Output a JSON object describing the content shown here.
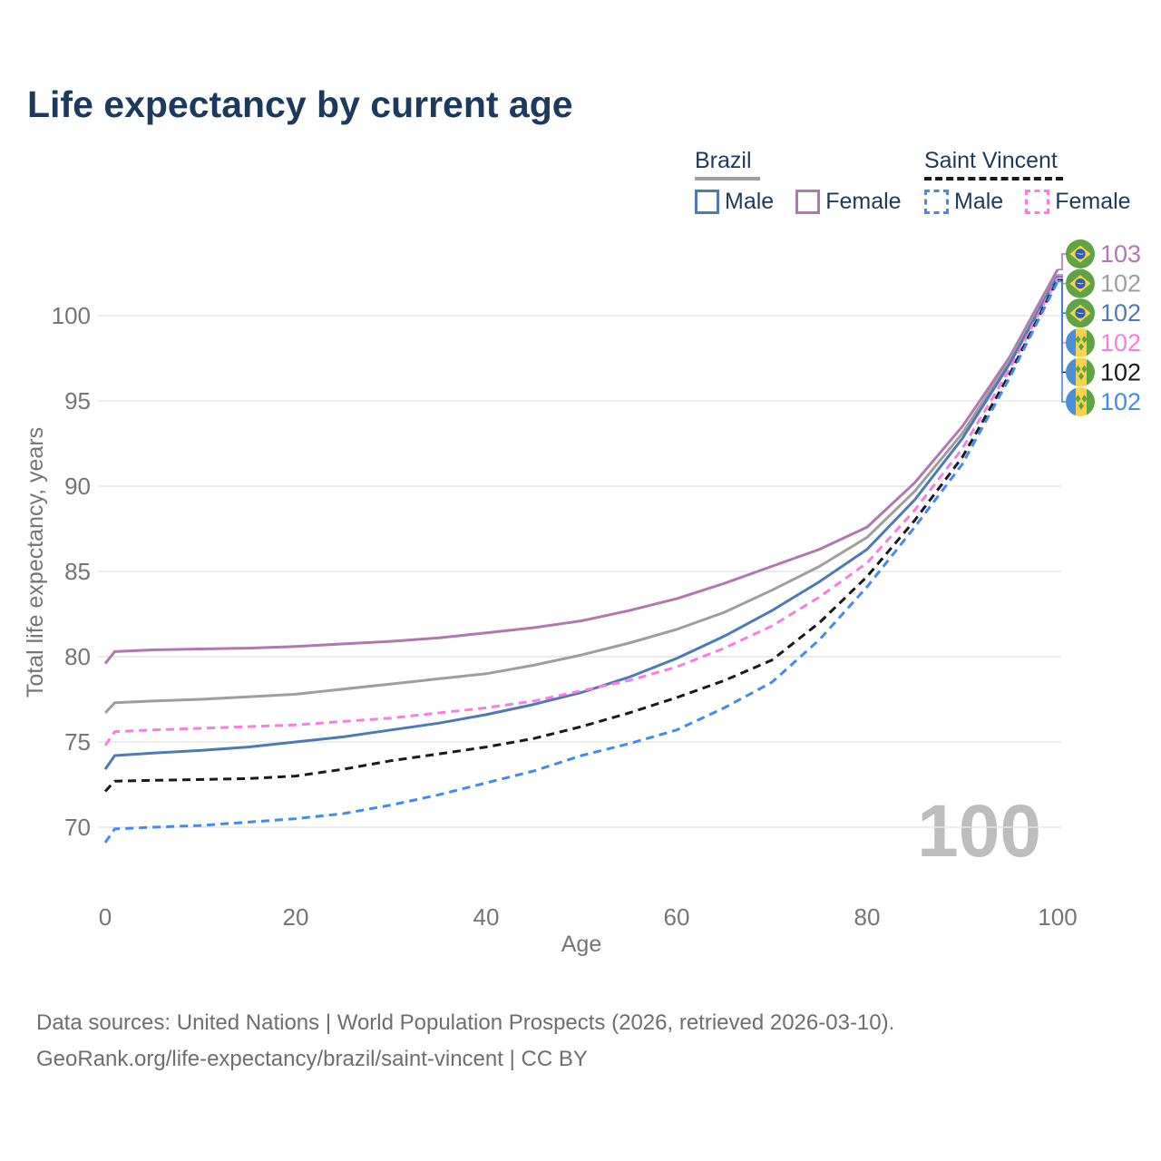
{
  "title": "Life expectancy by current age",
  "legend": {
    "brazil": {
      "label": "Brazil",
      "male_label": "Male",
      "female_label": "Female"
    },
    "saint_vincent": {
      "label": "Saint Vincent",
      "male_label": "Male",
      "female_label": "Female"
    }
  },
  "chart_data": {
    "type": "line",
    "title": "Life expectancy by current age",
    "xlabel": "Age",
    "ylabel": "Total life expectancy, years",
    "xlim": [
      0,
      100
    ],
    "ylim": [
      68,
      104
    ],
    "xticks": [
      0,
      20,
      40,
      60,
      80,
      100
    ],
    "yticks": [
      70,
      75,
      80,
      85,
      90,
      95,
      100
    ],
    "grid": "horizontal",
    "legend_position": "top-right",
    "watermark": "100",
    "ages": [
      0,
      1,
      5,
      10,
      15,
      20,
      25,
      30,
      35,
      40,
      45,
      50,
      55,
      60,
      65,
      70,
      75,
      80,
      85,
      90,
      95,
      100
    ],
    "series": [
      {
        "id": "brazil-female",
        "name": "Brazil Female",
        "color": "#b177af",
        "style": "solid",
        "values": [
          79.6,
          80.3,
          80.4,
          80.45,
          80.5,
          80.6,
          80.75,
          80.9,
          81.1,
          81.4,
          81.7,
          82.1,
          82.7,
          83.4,
          84.3,
          85.3,
          86.3,
          87.6,
          90.2,
          93.5,
          97.6,
          102.7
        ]
      },
      {
        "id": "brazil-total",
        "name": "Brazil",
        "color": "#9e9e9e",
        "style": "solid",
        "values": [
          76.7,
          77.3,
          77.4,
          77.5,
          77.65,
          77.8,
          78.1,
          78.4,
          78.7,
          79.0,
          79.5,
          80.1,
          80.8,
          81.6,
          82.6,
          83.9,
          85.3,
          87.0,
          89.7,
          93.1,
          97.4,
          102.4
        ]
      },
      {
        "id": "brazil-male",
        "name": "Brazil Male",
        "color": "#4e79b7",
        "style": "solid",
        "values": [
          73.4,
          74.2,
          74.35,
          74.5,
          74.7,
          75.0,
          75.3,
          75.7,
          76.1,
          76.6,
          77.2,
          77.9,
          78.8,
          79.9,
          81.2,
          82.7,
          84.4,
          86.3,
          89.2,
          92.8,
          97.2,
          102.3
        ]
      },
      {
        "id": "saint-vincent-female",
        "name": "Saint Vincent Female",
        "color": "#fb7ce1",
        "style": "dashed",
        "values": [
          74.8,
          75.6,
          75.7,
          75.8,
          75.9,
          76.0,
          76.2,
          76.4,
          76.7,
          77.0,
          77.4,
          78.0,
          78.6,
          79.4,
          80.5,
          81.8,
          83.5,
          85.5,
          88.6,
          92.2,
          96.9,
          102.2
        ]
      },
      {
        "id": "saint-vincent-total",
        "name": "Saint Vincent",
        "color": "#1a1a1a",
        "style": "dashed",
        "values": [
          72.1,
          72.7,
          72.75,
          72.8,
          72.85,
          73.0,
          73.4,
          73.9,
          74.3,
          74.7,
          75.2,
          75.9,
          76.7,
          77.6,
          78.6,
          79.8,
          82.0,
          84.7,
          88.0,
          91.7,
          96.6,
          102.1
        ]
      },
      {
        "id": "saint-vincent-male",
        "name": "Saint Vincent Male",
        "color": "#4189f5",
        "style": "dashed",
        "values": [
          69.1,
          69.9,
          70.0,
          70.1,
          70.3,
          70.5,
          70.8,
          71.3,
          71.9,
          72.6,
          73.3,
          74.2,
          74.9,
          75.7,
          77.0,
          78.5,
          81.0,
          84.1,
          87.6,
          91.3,
          96.4,
          102.0
        ]
      }
    ],
    "end_labels": [
      {
        "flag": "brazil",
        "label": "103",
        "color": "#b177af",
        "end_value": 102.7
      },
      {
        "flag": "brazil",
        "label": "102",
        "color": "#9e9e9e",
        "end_value": 102.4
      },
      {
        "flag": "brazil",
        "label": "102",
        "color": "#4e79b7",
        "end_value": 102.3
      },
      {
        "flag": "saint-vincent",
        "label": "102",
        "color": "#fb7ce1",
        "end_value": 102.2
      },
      {
        "flag": "saint-vincent",
        "label": "102",
        "color": "#1a1a1a",
        "end_value": 102.1
      },
      {
        "flag": "saint-vincent",
        "label": "102",
        "color": "#4189f5",
        "end_value": 102.0
      }
    ]
  },
  "footer": {
    "line1": "Data sources: United Nations | World Population Prospects (2026, retrieved 2026-03-10).",
    "line2": "GeoRank.org/life-expectancy/brazil/saint-vincent | CC BY"
  },
  "colors": {
    "title_text": "#1d3a5c",
    "axis_text": "#757575",
    "grid": "#e7e7e7",
    "watermark": "#bdbdbd",
    "footer_text": "#6e6e6e",
    "flag_brazil_green": "#5fa344",
    "flag_yellow": "#f5d44b",
    "flag_brazil_blue": "#2f5cb0",
    "flag_sv_blue": "#4a90d9",
    "flag_sv_green": "#5fa344"
  }
}
